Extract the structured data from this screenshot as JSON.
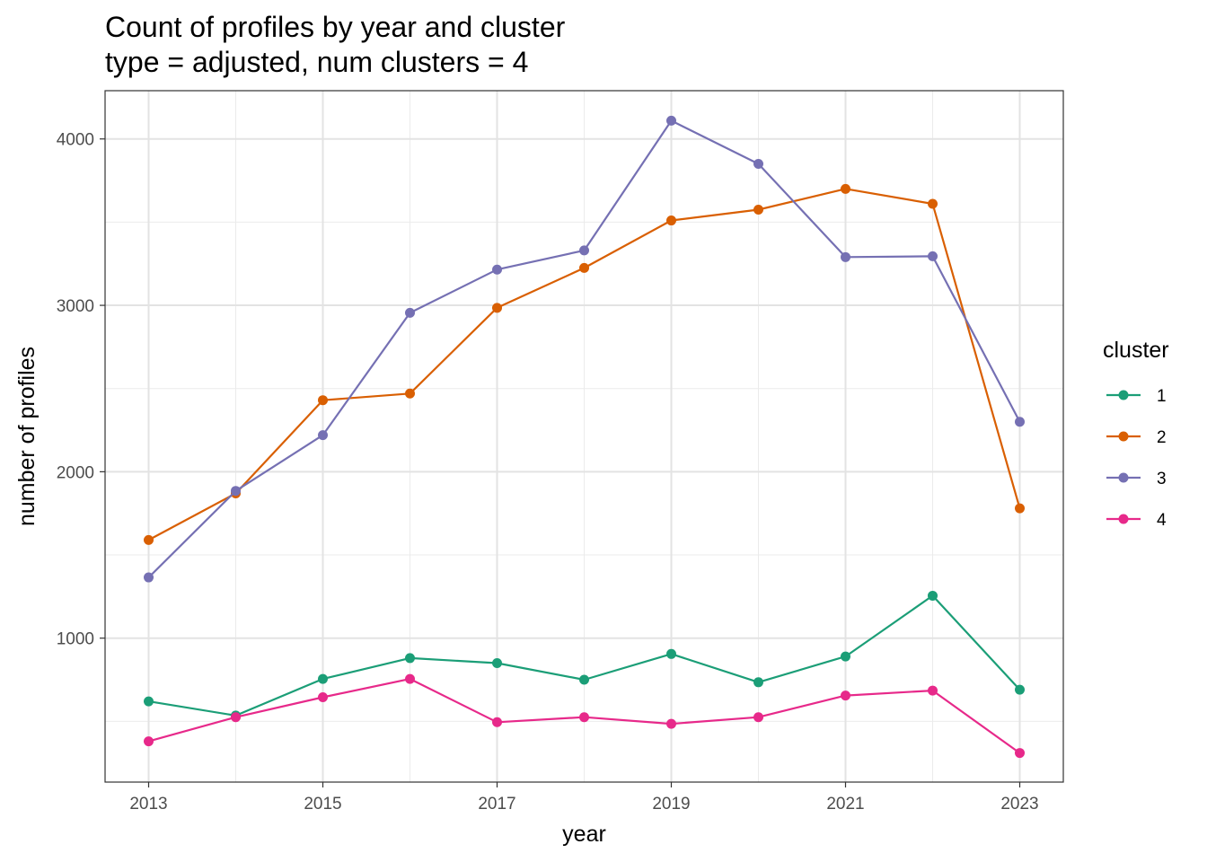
{
  "chart_data": {
    "type": "line",
    "title": "Count of profiles by year and cluster",
    "subtitle": "type = adjusted, num clusters = 4",
    "xlabel": "year",
    "ylabel": "number of profiles",
    "x": [
      2013,
      2014,
      2015,
      2016,
      2017,
      2018,
      2019,
      2020,
      2021,
      2022,
      2023
    ],
    "xticks": [
      2013,
      2015,
      2017,
      2019,
      2021,
      2023
    ],
    "yticks": [
      1000,
      2000,
      3000,
      4000
    ],
    "xlim": [
      2012.5,
      2023.5
    ],
    "ylim": [
      135,
      4290
    ],
    "grid": true,
    "legend_title": "cluster",
    "legend_position": "right",
    "series": [
      {
        "name": "1",
        "color": "#1b9e77",
        "values": [
          620,
          535,
          755,
          880,
          850,
          750,
          905,
          735,
          890,
          1255,
          690
        ]
      },
      {
        "name": "2",
        "color": "#d95f02",
        "values": [
          1590,
          1870,
          2430,
          2470,
          2985,
          3225,
          3510,
          3575,
          3700,
          3610,
          1780
        ]
      },
      {
        "name": "3",
        "color": "#7570b3",
        "values": [
          1365,
          1885,
          2220,
          2955,
          3215,
          3330,
          4110,
          3850,
          3290,
          3295,
          2300
        ]
      },
      {
        "name": "4",
        "color": "#e7298a",
        "values": [
          380,
          525,
          645,
          755,
          495,
          525,
          485,
          525,
          655,
          685,
          310
        ]
      }
    ]
  }
}
